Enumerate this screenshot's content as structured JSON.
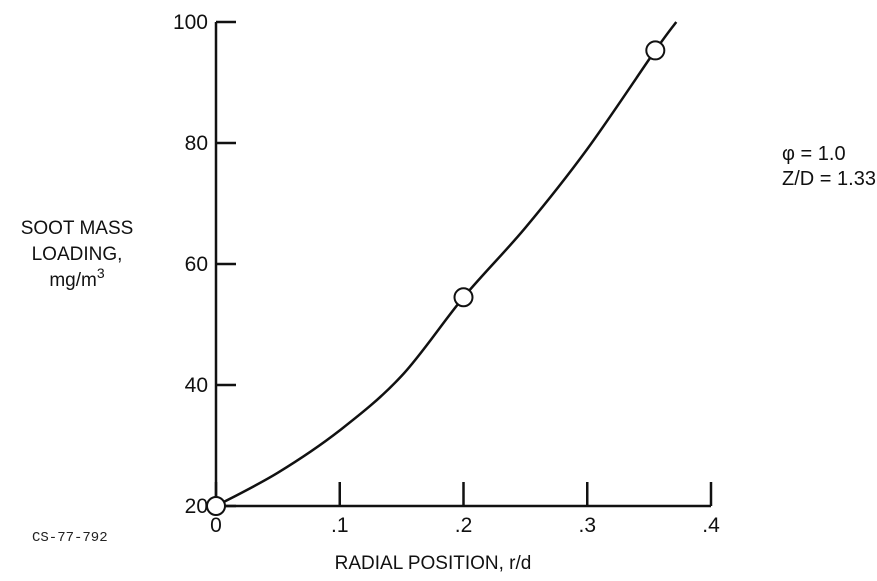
{
  "chart_data": {
    "type": "line",
    "xlabel": "RADIAL POSITION, r/d",
    "ylabel_lines": [
      "SOOT MASS",
      "LOADING,"
    ],
    "ylabel_unit": "mg/m",
    "ylabel_unit_sup": "3",
    "xlim": [
      0,
      0.4
    ],
    "ylim": [
      20,
      100
    ],
    "x_ticks": [
      0,
      0.1,
      0.2,
      0.3,
      0.4
    ],
    "x_tick_labels": [
      "0",
      ".1",
      ".2",
      ".3",
      ".4"
    ],
    "y_ticks": [
      20,
      40,
      60,
      80,
      100
    ],
    "y_tick_labels": [
      "20",
      "40",
      "60",
      "80",
      "100"
    ],
    "grid": false,
    "series": [
      {
        "points": [
          {
            "x": 0.0,
            "y": 20
          },
          {
            "x": 0.2,
            "y": 54.5
          },
          {
            "x": 0.355,
            "y": 95.3
          }
        ],
        "curve": [
          {
            "x": 0.0,
            "y": 20
          },
          {
            "x": 0.05,
            "y": 25.5
          },
          {
            "x": 0.1,
            "y": 32.5
          },
          {
            "x": 0.15,
            "y": 41.5
          },
          {
            "x": 0.2,
            "y": 54.5
          },
          {
            "x": 0.25,
            "y": 66
          },
          {
            "x": 0.3,
            "y": 79
          },
          {
            "x": 0.355,
            "y": 95.3
          },
          {
            "x": 0.372,
            "y": 100
          }
        ]
      }
    ],
    "annotations": [
      "φ = 1.0",
      "Z/D = 1.33"
    ],
    "figure_id": "CS-77-792"
  }
}
